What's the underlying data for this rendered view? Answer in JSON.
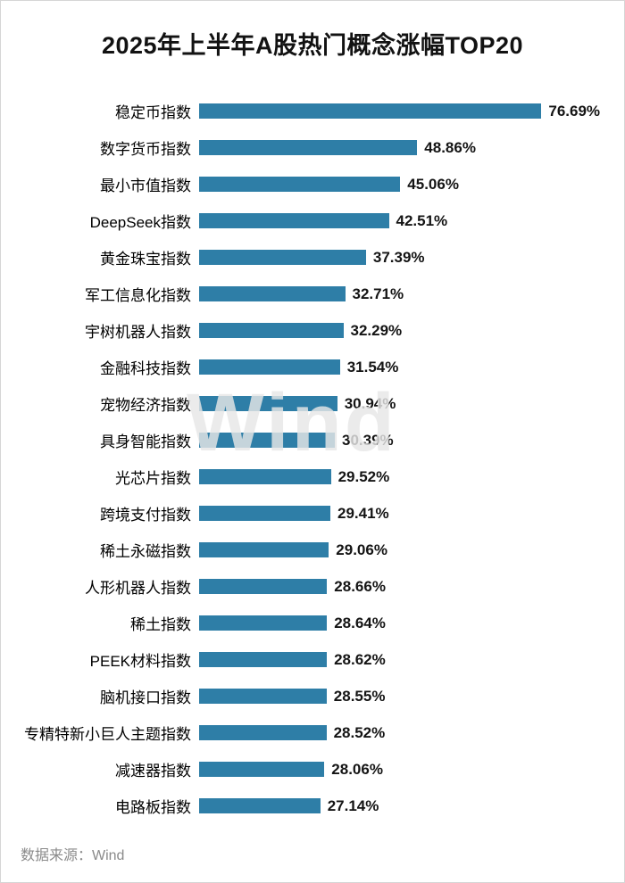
{
  "title": "2025年上半年A股热门概念涨幅TOP20",
  "watermark": "Wind",
  "footer": {
    "source": "数据来源：Wind"
  },
  "colors": {
    "bar": "#2e7ea7",
    "value_text": "#141414",
    "footer_text": "#8a8a8a"
  },
  "chart_data": {
    "type": "bar",
    "orientation": "horizontal",
    "title": "2025年上半年A股热门概念涨幅TOP20",
    "xlabel": "",
    "ylabel": "",
    "xlim": [
      0,
      80
    ],
    "grid": false,
    "legend": false,
    "bar_color": "#2e7ea7",
    "source": "Wind",
    "categories": [
      "稳定币指数",
      "数字货币指数",
      "最小市值指数",
      "DeepSeek指数",
      "黄金珠宝指数",
      "军工信息化指数",
      "宇树机器人指数",
      "金融科技指数",
      "宠物经济指数",
      "具身智能指数",
      "光芯片指数",
      "跨境支付指数",
      "稀土永磁指数",
      "人形机器人指数",
      "稀土指数",
      "PEEK材料指数",
      "脑机接口指数",
      "专精特新小巨人主题指数",
      "减速器指数",
      "电路板指数"
    ],
    "values": [
      76.69,
      48.86,
      45.06,
      42.51,
      37.39,
      32.71,
      32.29,
      31.54,
      30.94,
      30.39,
      29.52,
      29.41,
      29.06,
      28.66,
      28.64,
      28.62,
      28.55,
      28.52,
      28.06,
      27.14
    ],
    "value_labels": [
      "76.69%",
      "48.86%",
      "45.06%",
      "42.51%",
      "37.39%",
      "32.71%",
      "32.29%",
      "31.54%",
      "30.94%",
      "30.39%",
      "29.52%",
      "29.41%",
      "29.06%",
      "28.66%",
      "28.64%",
      "28.62%",
      "28.55%",
      "28.52%",
      "28.06%",
      "27.14%"
    ]
  }
}
